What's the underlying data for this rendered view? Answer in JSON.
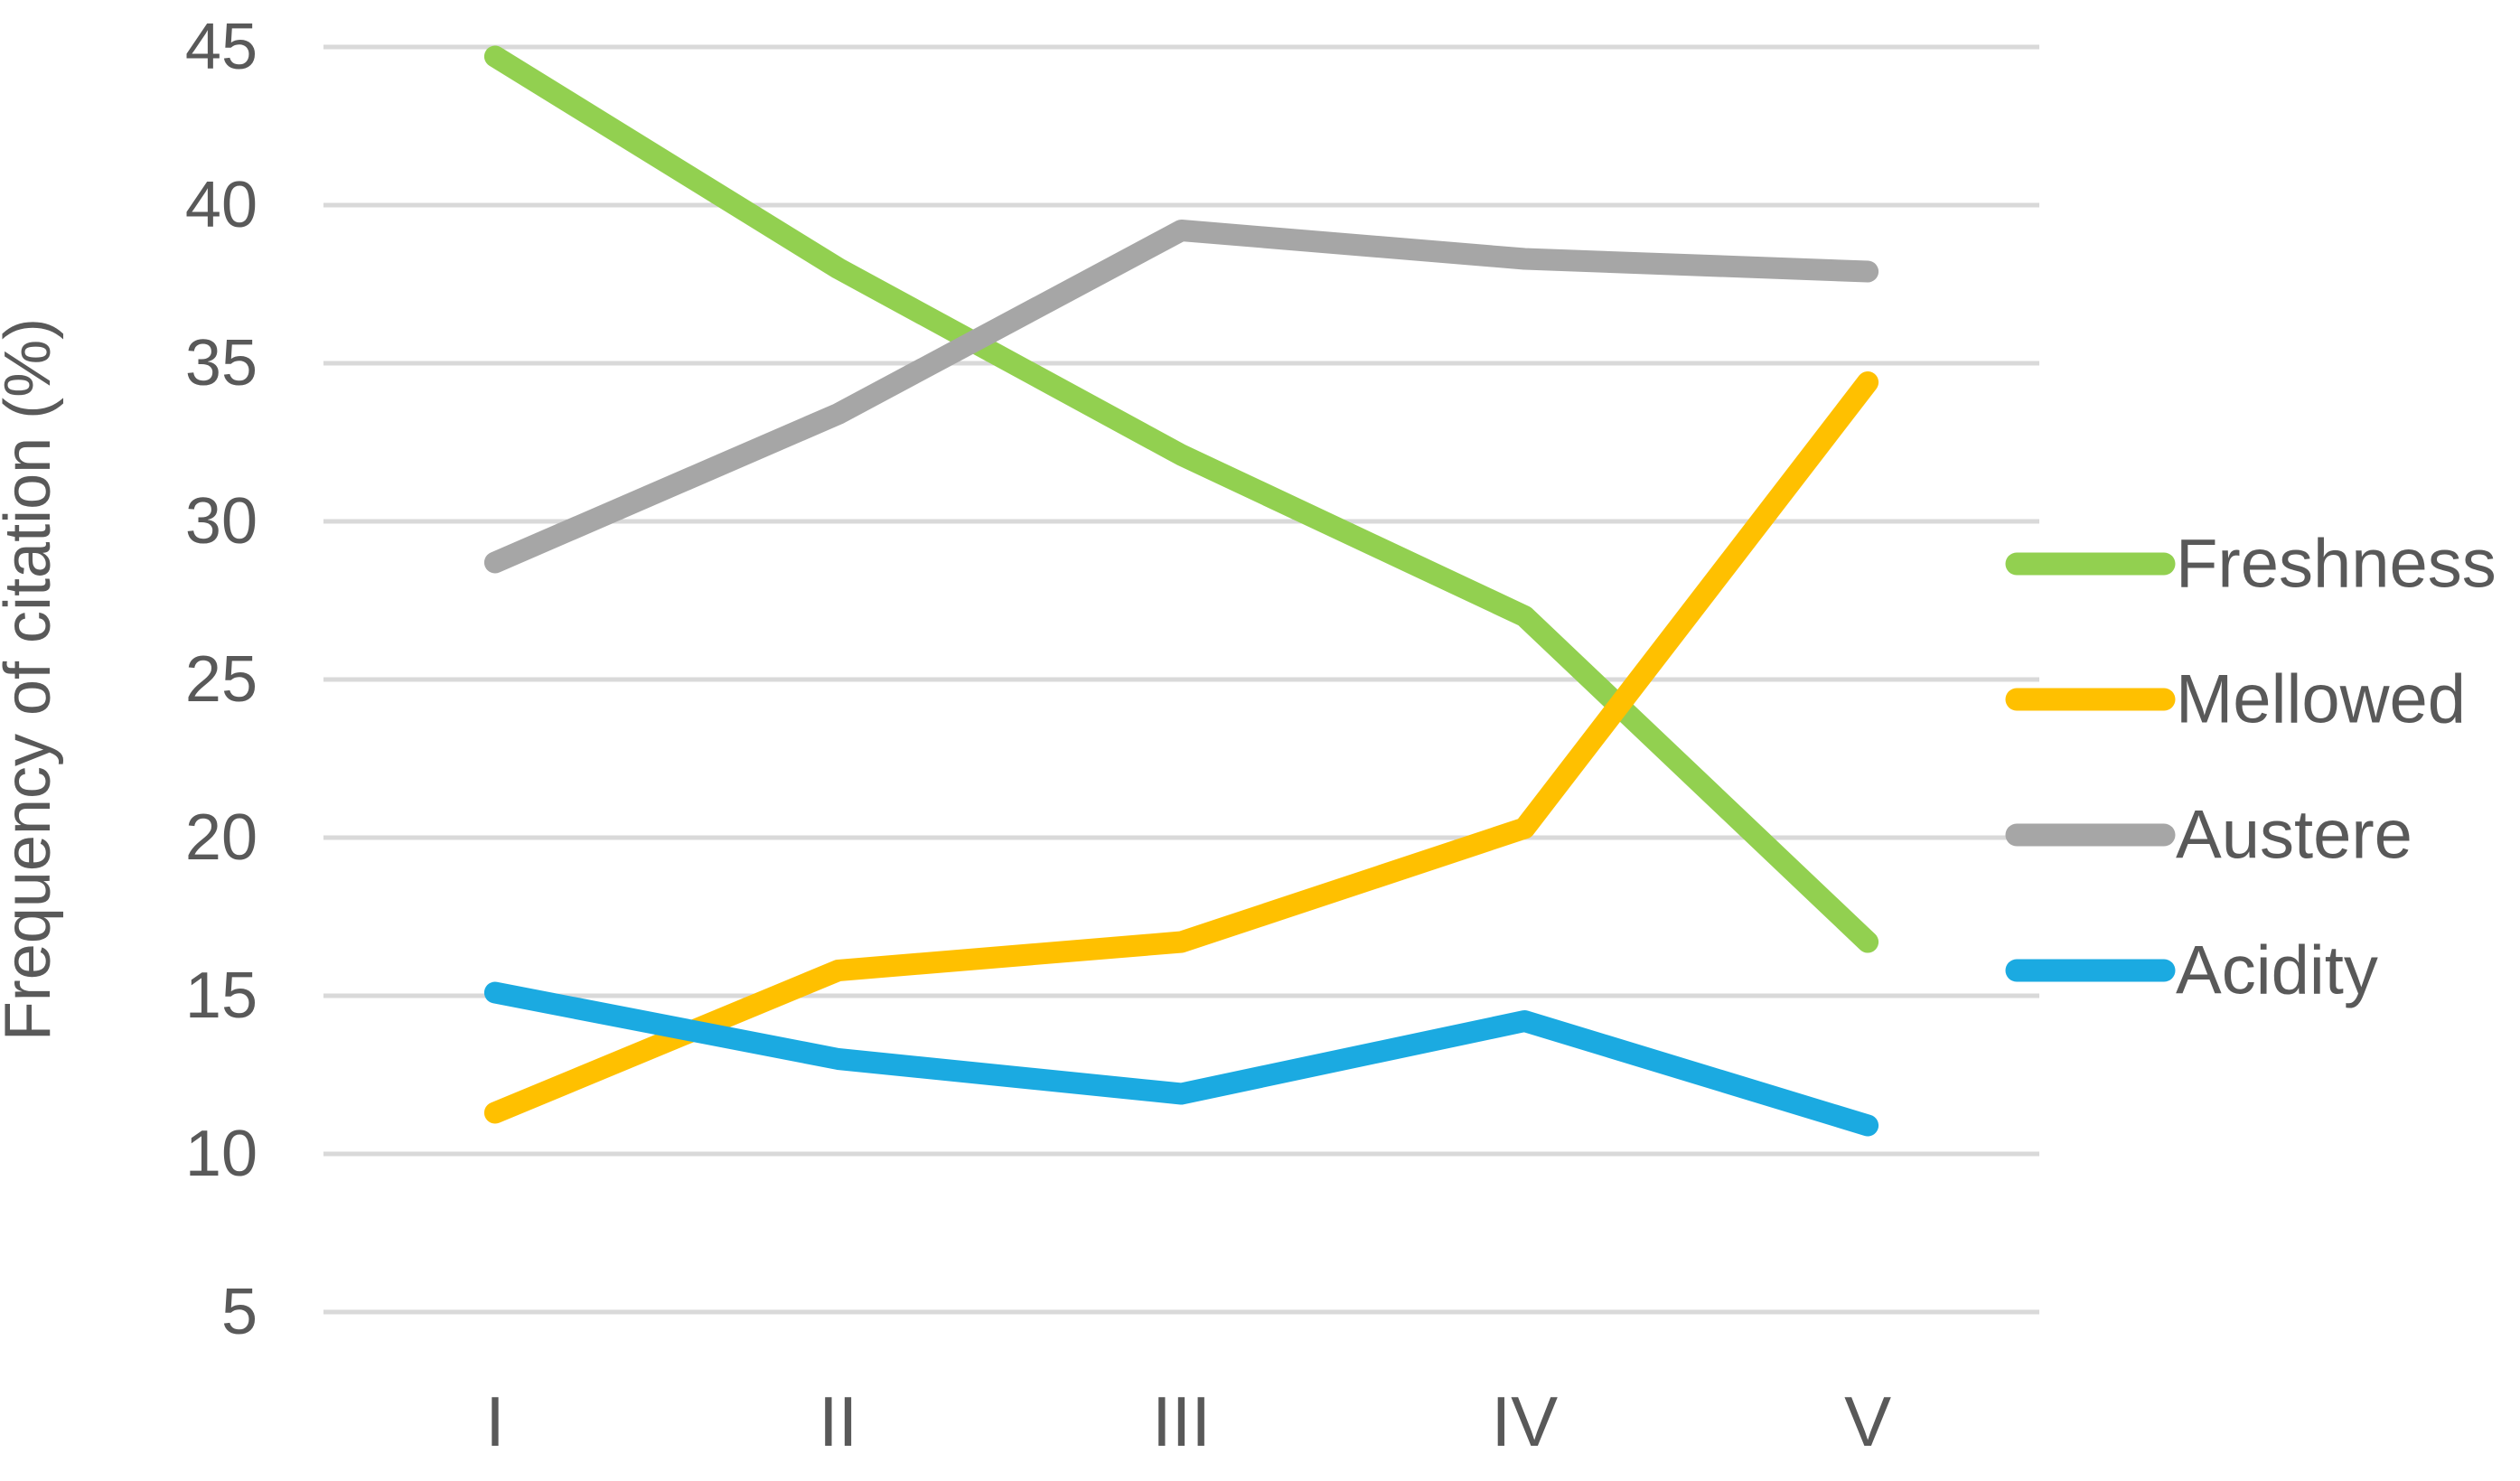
{
  "figure": {
    "y_axis_title": "Frequency of citation (%)"
  },
  "chart_data": {
    "type": "line",
    "title": "",
    "xlabel": "",
    "ylabel": "Frequency of citation (%)",
    "categories": [
      "I",
      "II",
      "III",
      "IV",
      "V"
    ],
    "series": [
      {
        "name": "Freshness",
        "color": "#92D050",
        "values": [
          44.7,
          38.0,
          32.1,
          27.0,
          16.7
        ]
      },
      {
        "name": "Mellowed",
        "color": "#FFC000",
        "values": [
          11.3,
          15.8,
          16.7,
          20.3,
          34.4
        ]
      },
      {
        "name": "Austere",
        "color": "#A6A6A6",
        "values": [
          28.7,
          33.4,
          39.2,
          38.3,
          37.9
        ]
      },
      {
        "name": "Acidity",
        "color": "#1BAAE1",
        "values": [
          15.1,
          13.0,
          11.9,
          14.2,
          10.9
        ]
      }
    ],
    "ylim": [
      5,
      45
    ],
    "ytick_step": 5,
    "yticks": [
      5,
      10,
      15,
      20,
      25,
      30,
      35,
      40,
      45
    ],
    "grid": "horizontal",
    "gridline_color": "#D9D9D9",
    "text_color": "#595959",
    "legend_position": "right",
    "legend_order": [
      "Freshness",
      "Mellowed",
      "Austere",
      "Acidity"
    ]
  }
}
